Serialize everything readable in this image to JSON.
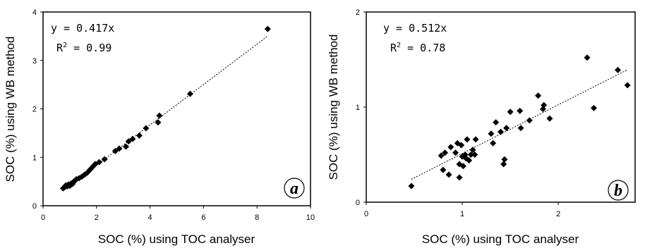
{
  "chart_data": [
    {
      "type": "scatter",
      "panel_label": "a",
      "xlabel": "SOC (%) using TOC analyser",
      "ylabel": "SOC (%) using WB method",
      "xlim": [
        0,
        10
      ],
      "ylim": [
        0,
        4
      ],
      "xticks": [
        0,
        2,
        4,
        6,
        8,
        10
      ],
      "yticks": [
        0,
        1,
        2,
        3,
        4
      ],
      "equation": "y = 0.417x",
      "r2_prefix": "R",
      "r2_sup": "2",
      "r2_value": " = 0.99",
      "trendline_slope": 0.417,
      "trendline_x_range": [
        0.75,
        8.4
      ],
      "marker": "diamond",
      "grid": false,
      "points": [
        [
          0.75,
          0.36
        ],
        [
          0.8,
          0.38
        ],
        [
          0.85,
          0.42
        ],
        [
          0.9,
          0.4
        ],
        [
          0.95,
          0.44
        ],
        [
          1.0,
          0.41
        ],
        [
          1.05,
          0.46
        ],
        [
          1.1,
          0.45
        ],
        [
          1.15,
          0.5
        ],
        [
          1.2,
          0.52
        ],
        [
          1.25,
          0.55
        ],
        [
          1.35,
          0.57
        ],
        [
          1.45,
          0.6
        ],
        [
          1.55,
          0.64
        ],
        [
          1.65,
          0.68
        ],
        [
          1.75,
          0.74
        ],
        [
          1.85,
          0.8
        ],
        [
          1.95,
          0.86
        ],
        [
          2.1,
          0.9
        ],
        [
          2.3,
          0.96
        ],
        [
          2.7,
          1.13
        ],
        [
          2.85,
          1.18
        ],
        [
          3.1,
          1.22
        ],
        [
          3.2,
          1.33
        ],
        [
          3.35,
          1.38
        ],
        [
          3.6,
          1.45
        ],
        [
          3.85,
          1.6
        ],
        [
          4.3,
          1.72
        ],
        [
          4.35,
          1.86
        ],
        [
          5.5,
          2.31
        ],
        [
          8.4,
          3.65
        ]
      ]
    },
    {
      "type": "scatter",
      "panel_label": "b",
      "xlabel": "SOC (%) using TOC analyser",
      "ylabel": "SOC (%) using WB method",
      "xlim": [
        0,
        2.8
      ],
      "ylim": [
        0,
        2
      ],
      "xticks": [
        0,
        1,
        2
      ],
      "yticks": [
        0,
        1,
        2
      ],
      "equation": "y = 0.512x",
      "r2_prefix": "R",
      "r2_sup": "2",
      "r2_value": " = 0.78",
      "trendline_slope": 0.512,
      "trendline_x_range": [
        0.47,
        2.72
      ],
      "marker": "diamond",
      "grid": false,
      "points": [
        [
          0.47,
          0.17
        ],
        [
          0.78,
          0.49
        ],
        [
          0.8,
          0.34
        ],
        [
          0.82,
          0.52
        ],
        [
          0.86,
          0.29
        ],
        [
          0.88,
          0.58
        ],
        [
          0.93,
          0.52
        ],
        [
          0.95,
          0.62
        ],
        [
          0.97,
          0.26
        ],
        [
          0.97,
          0.4
        ],
        [
          0.99,
          0.6
        ],
        [
          1.0,
          0.48
        ],
        [
          1.01,
          0.38
        ],
        [
          1.03,
          0.5
        ],
        [
          1.04,
          0.46
        ],
        [
          1.05,
          0.66
        ],
        [
          1.07,
          0.44
        ],
        [
          1.09,
          0.5
        ],
        [
          1.11,
          0.55
        ],
        [
          1.13,
          0.5
        ],
        [
          1.14,
          0.66
        ],
        [
          1.3,
          0.72
        ],
        [
          1.32,
          0.62
        ],
        [
          1.35,
          0.84
        ],
        [
          1.4,
          0.74
        ],
        [
          1.43,
          0.4
        ],
        [
          1.44,
          0.45
        ],
        [
          1.46,
          0.78
        ],
        [
          1.5,
          0.95
        ],
        [
          1.6,
          0.96
        ],
        [
          1.61,
          0.78
        ],
        [
          1.7,
          0.86
        ],
        [
          1.79,
          1.12
        ],
        [
          1.84,
          0.98
        ],
        [
          1.85,
          1.02
        ],
        [
          1.91,
          0.88
        ],
        [
          2.3,
          1.52
        ],
        [
          2.37,
          0.99
        ],
        [
          2.62,
          1.39
        ],
        [
          2.72,
          1.23
        ]
      ]
    }
  ]
}
